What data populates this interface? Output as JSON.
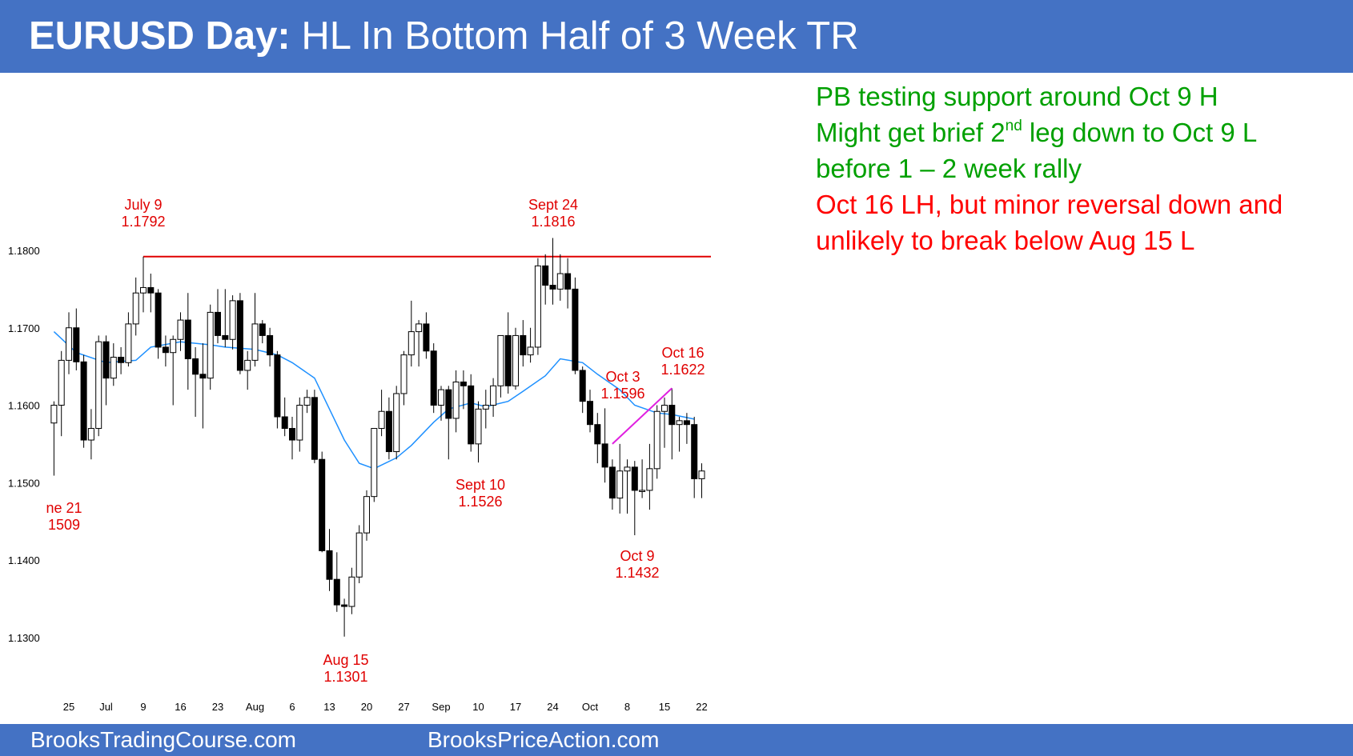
{
  "header": {
    "title_bold": "EURUSD Day:",
    "title_rest": " HL In Bottom Half of 3 Week TR"
  },
  "notes": {
    "line1": "PB testing support around Oct 9 H",
    "line2_pre": "Might get brief 2",
    "line2_sup": "nd",
    "line2_post": " leg down to Oct 9 L",
    "line3": "before 1 – 2 week rally",
    "line4": "Oct 16 LH, but minor reversal down and",
    "line5": "unlikely to break below Aug 15 L"
  },
  "footer": {
    "left": "BrooksTradingCourse.com",
    "right": "BrooksPriceAction.com"
  },
  "colors": {
    "banner": "#4472c4",
    "annotation_red": "#e00000",
    "resistance_line": "#e00000",
    "moving_average": "#1e90ff",
    "trendline": "#e020e0",
    "note_green": "#00a000",
    "note_red": "#ff0000"
  },
  "chart_data": {
    "type": "candlestick",
    "title": "",
    "y_ticks": [
      "1.1300",
      "1.1400",
      "1.1500",
      "1.1600",
      "1.1700",
      "1.1800"
    ],
    "ylim": [
      1.125,
      1.185
    ],
    "x_ticks": [
      {
        "label": "25",
        "date": "2018-06-25"
      },
      {
        "label": "Jul",
        "date": "2018-07-02"
      },
      {
        "label": "9",
        "date": "2018-07-09"
      },
      {
        "label": "16",
        "date": "2018-07-16"
      },
      {
        "label": "23",
        "date": "2018-07-23"
      },
      {
        "label": "Aug",
        "date": "2018-07-30"
      },
      {
        "label": "6",
        "date": "2018-08-06"
      },
      {
        "label": "13",
        "date": "2018-08-13"
      },
      {
        "label": "20",
        "date": "2018-08-20"
      },
      {
        "label": "27",
        "date": "2018-08-27"
      },
      {
        "label": "Sep",
        "date": "2018-09-03"
      },
      {
        "label": "10",
        "date": "2018-09-10"
      },
      {
        "label": "17",
        "date": "2018-09-17"
      },
      {
        "label": "24",
        "date": "2018-09-24"
      },
      {
        "label": "Oct",
        "date": "2018-10-01"
      },
      {
        "label": "8",
        "date": "2018-10-08"
      },
      {
        "label": "15",
        "date": "2018-10-15"
      },
      {
        "label": "22",
        "date": "2018-10-22"
      }
    ],
    "annotations": [
      {
        "lines": [
          "ne 21",
          "1509"
        ],
        "date": "2018-06-21",
        "price": 1.1509
      },
      {
        "lines": [
          "July 9",
          "1.1792"
        ],
        "date": "2018-07-09",
        "price": 1.1792
      },
      {
        "lines": [
          "Aug 15",
          "1.1301"
        ],
        "date": "2018-08-15",
        "price": 1.1301
      },
      {
        "lines": [
          "Sept 10",
          "1.1526"
        ],
        "date": "2018-09-10",
        "price": 1.1526
      },
      {
        "lines": [
          "Sept 24",
          "1.1816"
        ],
        "date": "2018-09-24",
        "price": 1.1816
      },
      {
        "lines": [
          "Oct 3",
          "1.1596"
        ],
        "date": "2018-10-03",
        "price": 1.1596
      },
      {
        "lines": [
          "Oct 9",
          "1.1432"
        ],
        "date": "2018-10-09",
        "price": 1.1432
      },
      {
        "lines": [
          "Oct 16",
          "1.1622"
        ],
        "date": "2018-10-16",
        "price": 1.1622
      }
    ],
    "resistance_line": {
      "price": 1.1792,
      "from": "2018-07-09"
    },
    "trendline": {
      "from": {
        "date": "2018-10-04",
        "price": 1.155
      },
      "to": {
        "date": "2018-10-16",
        "price": 1.1622
      }
    },
    "moving_average": {
      "name": "",
      "points": [
        [
          "2018-06-21",
          1.1695
        ],
        [
          "2018-06-26",
          1.1668
        ],
        [
          "2018-07-02",
          1.1655
        ],
        [
          "2018-07-06",
          1.1658
        ],
        [
          "2018-07-10",
          1.1675
        ],
        [
          "2018-07-16",
          1.1682
        ],
        [
          "2018-07-20",
          1.1678
        ],
        [
          "2018-07-24",
          1.1675
        ],
        [
          "2018-07-30",
          1.1672
        ],
        [
          "2018-08-02",
          1.1665
        ],
        [
          "2018-08-06",
          1.1655
        ],
        [
          "2018-08-09",
          1.1635
        ],
        [
          "2018-08-13",
          1.1595
        ],
        [
          "2018-08-15",
          1.1555
        ],
        [
          "2018-08-17",
          1.1525
        ],
        [
          "2018-08-21",
          1.1518
        ],
        [
          "2018-08-24",
          1.1532
        ],
        [
          "2018-08-28",
          1.1548
        ],
        [
          "2018-08-31",
          1.1578
        ],
        [
          "2018-09-04",
          1.1595
        ],
        [
          "2018-09-07",
          1.1603
        ],
        [
          "2018-09-11",
          1.1598
        ],
        [
          "2018-09-14",
          1.1605
        ],
        [
          "2018-09-18",
          1.1618
        ],
        [
          "2018-09-21",
          1.1638
        ],
        [
          "2018-09-25",
          1.166
        ],
        [
          "2018-09-28",
          1.1655
        ],
        [
          "2018-10-02",
          1.164
        ],
        [
          "2018-10-05",
          1.162
        ],
        [
          "2018-10-09",
          1.16
        ],
        [
          "2018-10-12",
          1.159
        ],
        [
          "2018-10-16",
          1.1588
        ],
        [
          "2018-10-19",
          1.1582
        ]
      ]
    },
    "candles": [
      {
        "date": "2018-06-21",
        "open": 1.1577,
        "high": 1.1605,
        "low": 1.1509,
        "close": 1.16
      },
      {
        "date": "2018-06-22",
        "open": 1.16,
        "high": 1.167,
        "low": 1.156,
        "close": 1.1658
      },
      {
        "date": "2018-06-25",
        "open": 1.1658,
        "high": 1.172,
        "low": 1.164,
        "close": 1.17
      },
      {
        "date": "2018-06-26",
        "open": 1.17,
        "high": 1.1725,
        "low": 1.1645,
        "close": 1.1656
      },
      {
        "date": "2018-06-27",
        "open": 1.1656,
        "high": 1.1665,
        "low": 1.1545,
        "close": 1.1555
      },
      {
        "date": "2018-06-28",
        "open": 1.1555,
        "high": 1.1595,
        "low": 1.153,
        "close": 1.157
      },
      {
        "date": "2018-06-29",
        "open": 1.157,
        "high": 1.169,
        "low": 1.156,
        "close": 1.1682
      },
      {
        "date": "2018-07-02",
        "open": 1.1682,
        "high": 1.169,
        "low": 1.16,
        "close": 1.1635
      },
      {
        "date": "2018-07-03",
        "open": 1.1635,
        "high": 1.168,
        "low": 1.1625,
        "close": 1.1662
      },
      {
        "date": "2018-07-04",
        "open": 1.1662,
        "high": 1.1675,
        "low": 1.164,
        "close": 1.1655
      },
      {
        "date": "2018-07-05",
        "open": 1.1655,
        "high": 1.172,
        "low": 1.165,
        "close": 1.1705
      },
      {
        "date": "2018-07-06",
        "open": 1.1705,
        "high": 1.1765,
        "low": 1.169,
        "close": 1.1745
      },
      {
        "date": "2018-07-09",
        "open": 1.1745,
        "high": 1.1792,
        "low": 1.172,
        "close": 1.1752
      },
      {
        "date": "2018-07-10",
        "open": 1.1752,
        "high": 1.177,
        "low": 1.172,
        "close": 1.1745
      },
      {
        "date": "2018-07-11",
        "open": 1.1745,
        "high": 1.175,
        "low": 1.166,
        "close": 1.1675
      },
      {
        "date": "2018-07-12",
        "open": 1.1675,
        "high": 1.169,
        "low": 1.165,
        "close": 1.1668
      },
      {
        "date": "2018-07-13",
        "open": 1.1668,
        "high": 1.169,
        "low": 1.16,
        "close": 1.1685
      },
      {
        "date": "2018-07-16",
        "open": 1.1685,
        "high": 1.172,
        "low": 1.167,
        "close": 1.171
      },
      {
        "date": "2018-07-17",
        "open": 1.171,
        "high": 1.1745,
        "low": 1.162,
        "close": 1.166
      },
      {
        "date": "2018-07-18",
        "open": 1.166,
        "high": 1.1675,
        "low": 1.1585,
        "close": 1.164
      },
      {
        "date": "2018-07-19",
        "open": 1.164,
        "high": 1.168,
        "low": 1.157,
        "close": 1.1635
      },
      {
        "date": "2018-07-20",
        "open": 1.1635,
        "high": 1.173,
        "low": 1.162,
        "close": 1.172
      },
      {
        "date": "2018-07-23",
        "open": 1.172,
        "high": 1.175,
        "low": 1.168,
        "close": 1.169
      },
      {
        "date": "2018-07-24",
        "open": 1.169,
        "high": 1.175,
        "low": 1.1675,
        "close": 1.1685
      },
      {
        "date": "2018-07-25",
        "open": 1.1685,
        "high": 1.1742,
        "low": 1.1672,
        "close": 1.1735
      },
      {
        "date": "2018-07-26",
        "open": 1.1735,
        "high": 1.1745,
        "low": 1.164,
        "close": 1.1645
      },
      {
        "date": "2018-07-27",
        "open": 1.1645,
        "high": 1.167,
        "low": 1.162,
        "close": 1.1658
      },
      {
        "date": "2018-07-30",
        "open": 1.1658,
        "high": 1.1745,
        "low": 1.165,
        "close": 1.1705
      },
      {
        "date": "2018-07-31",
        "open": 1.1705,
        "high": 1.171,
        "low": 1.168,
        "close": 1.169
      },
      {
        "date": "2018-08-01",
        "open": 1.169,
        "high": 1.17,
        "low": 1.165,
        "close": 1.1665
      },
      {
        "date": "2018-08-02",
        "open": 1.1665,
        "high": 1.167,
        "low": 1.157,
        "close": 1.1585
      },
      {
        "date": "2018-08-03",
        "open": 1.1585,
        "high": 1.161,
        "low": 1.156,
        "close": 1.157
      },
      {
        "date": "2018-08-06",
        "open": 1.157,
        "high": 1.1585,
        "low": 1.153,
        "close": 1.1555
      },
      {
        "date": "2018-08-07",
        "open": 1.1555,
        "high": 1.161,
        "low": 1.154,
        "close": 1.16
      },
      {
        "date": "2018-08-08",
        "open": 1.16,
        "high": 1.162,
        "low": 1.159,
        "close": 1.161
      },
      {
        "date": "2018-08-09",
        "open": 1.161,
        "high": 1.162,
        "low": 1.1525,
        "close": 1.153
      },
      {
        "date": "2018-08-10",
        "open": 1.153,
        "high": 1.154,
        "low": 1.141,
        "close": 1.1412
      },
      {
        "date": "2018-08-13",
        "open": 1.1412,
        "high": 1.144,
        "low": 1.136,
        "close": 1.1375
      },
      {
        "date": "2018-08-14",
        "open": 1.1375,
        "high": 1.141,
        "low": 1.1333,
        "close": 1.1342
      },
      {
        "date": "2018-08-15",
        "open": 1.1342,
        "high": 1.135,
        "low": 1.1301,
        "close": 1.134
      },
      {
        "date": "2018-08-16",
        "open": 1.134,
        "high": 1.139,
        "low": 1.133,
        "close": 1.1378
      },
      {
        "date": "2018-08-17",
        "open": 1.1378,
        "high": 1.1445,
        "low": 1.137,
        "close": 1.1435
      },
      {
        "date": "2018-08-20",
        "open": 1.1435,
        "high": 1.149,
        "low": 1.1425,
        "close": 1.1482
      },
      {
        "date": "2018-08-21",
        "open": 1.1482,
        "high": 1.157,
        "low": 1.1475,
        "close": 1.157
      },
      {
        "date": "2018-08-22",
        "open": 1.157,
        "high": 1.162,
        "low": 1.156,
        "close": 1.1592
      },
      {
        "date": "2018-08-23",
        "open": 1.1592,
        "high": 1.161,
        "low": 1.153,
        "close": 1.154
      },
      {
        "date": "2018-08-24",
        "open": 1.154,
        "high": 1.1625,
        "low": 1.153,
        "close": 1.1615
      },
      {
        "date": "2018-08-27",
        "open": 1.1615,
        "high": 1.167,
        "low": 1.16,
        "close": 1.1665
      },
      {
        "date": "2018-08-28",
        "open": 1.1665,
        "high": 1.1735,
        "low": 1.165,
        "close": 1.1695
      },
      {
        "date": "2018-08-29",
        "open": 1.1695,
        "high": 1.171,
        "low": 1.165,
        "close": 1.1705
      },
      {
        "date": "2018-08-30",
        "open": 1.1705,
        "high": 1.172,
        "low": 1.166,
        "close": 1.167
      },
      {
        "date": "2018-08-31",
        "open": 1.167,
        "high": 1.168,
        "low": 1.159,
        "close": 1.16
      },
      {
        "date": "2018-09-03",
        "open": 1.16,
        "high": 1.1625,
        "low": 1.158,
        "close": 1.162
      },
      {
        "date": "2018-09-04",
        "open": 1.162,
        "high": 1.1625,
        "low": 1.153,
        "close": 1.1583
      },
      {
        "date": "2018-09-05",
        "open": 1.1583,
        "high": 1.1645,
        "low": 1.1565,
        "close": 1.163
      },
      {
        "date": "2018-09-06",
        "open": 1.163,
        "high": 1.1645,
        "low": 1.1595,
        "close": 1.1625
      },
      {
        "date": "2018-09-07",
        "open": 1.1625,
        "high": 1.164,
        "low": 1.154,
        "close": 1.155
      },
      {
        "date": "2018-09-10",
        "open": 1.155,
        "high": 1.1605,
        "low": 1.1526,
        "close": 1.1595
      },
      {
        "date": "2018-09-11",
        "open": 1.1595,
        "high": 1.162,
        "low": 1.157,
        "close": 1.16
      },
      {
        "date": "2018-09-12",
        "open": 1.16,
        "high": 1.1635,
        "low": 1.1585,
        "close": 1.1625
      },
      {
        "date": "2018-09-13",
        "open": 1.1625,
        "high": 1.169,
        "low": 1.161,
        "close": 1.169
      },
      {
        "date": "2018-09-14",
        "open": 1.169,
        "high": 1.172,
        "low": 1.1615,
        "close": 1.1625
      },
      {
        "date": "2018-09-17",
        "open": 1.1625,
        "high": 1.17,
        "low": 1.162,
        "close": 1.169
      },
      {
        "date": "2018-09-18",
        "open": 1.169,
        "high": 1.171,
        "low": 1.165,
        "close": 1.1665
      },
      {
        "date": "2018-09-19",
        "open": 1.1665,
        "high": 1.17,
        "low": 1.1655,
        "close": 1.1675
      },
      {
        "date": "2018-09-20",
        "open": 1.1675,
        "high": 1.179,
        "low": 1.1665,
        "close": 1.178
      },
      {
        "date": "2018-09-21",
        "open": 1.178,
        "high": 1.1795,
        "low": 1.173,
        "close": 1.1755
      },
      {
        "date": "2018-09-24",
        "open": 1.1755,
        "high": 1.1816,
        "low": 1.173,
        "close": 1.175
      },
      {
        "date": "2018-09-25",
        "open": 1.175,
        "high": 1.1795,
        "low": 1.1735,
        "close": 1.177
      },
      {
        "date": "2018-09-26",
        "open": 1.177,
        "high": 1.179,
        "low": 1.1725,
        "close": 1.175
      },
      {
        "date": "2018-09-27",
        "open": 1.175,
        "high": 1.1765,
        "low": 1.164,
        "close": 1.1645
      },
      {
        "date": "2018-09-28",
        "open": 1.1645,
        "high": 1.165,
        "low": 1.159,
        "close": 1.1605
      },
      {
        "date": "2018-10-01",
        "open": 1.1605,
        "high": 1.162,
        "low": 1.1565,
        "close": 1.1575
      },
      {
        "date": "2018-10-02",
        "open": 1.1575,
        "high": 1.159,
        "low": 1.1525,
        "close": 1.155
      },
      {
        "date": "2018-10-03",
        "open": 1.155,
        "high": 1.1596,
        "low": 1.15,
        "close": 1.152
      },
      {
        "date": "2018-10-04",
        "open": 1.152,
        "high": 1.153,
        "low": 1.1465,
        "close": 1.148
      },
      {
        "date": "2018-10-05",
        "open": 1.148,
        "high": 1.155,
        "low": 1.146,
        "close": 1.1515
      },
      {
        "date": "2018-10-08",
        "open": 1.1515,
        "high": 1.153,
        "low": 1.146,
        "close": 1.152
      },
      {
        "date": "2018-10-09",
        "open": 1.152,
        "high": 1.1528,
        "low": 1.1432,
        "close": 1.149
      },
      {
        "date": "2018-10-10",
        "open": 1.149,
        "high": 1.153,
        "low": 1.148,
        "close": 1.149
      },
      {
        "date": "2018-10-11",
        "open": 1.149,
        "high": 1.155,
        "low": 1.1465,
        "close": 1.1518
      },
      {
        "date": "2018-10-12",
        "open": 1.1518,
        "high": 1.16,
        "low": 1.1505,
        "close": 1.1592
      },
      {
        "date": "2018-10-15",
        "open": 1.1592,
        "high": 1.161,
        "low": 1.1545,
        "close": 1.16
      },
      {
        "date": "2018-10-16",
        "open": 1.16,
        "high": 1.1622,
        "low": 1.153,
        "close": 1.1575
      },
      {
        "date": "2018-10-17",
        "open": 1.1575,
        "high": 1.1585,
        "low": 1.154,
        "close": 1.158
      },
      {
        "date": "2018-10-18",
        "open": 1.158,
        "high": 1.159,
        "low": 1.155,
        "close": 1.1575
      },
      {
        "date": "2018-10-19",
        "open": 1.1575,
        "high": 1.1585,
        "low": 1.148,
        "close": 1.1505
      },
      {
        "date": "2018-10-22",
        "open": 1.1505,
        "high": 1.1525,
        "low": 1.148,
        "close": 1.1515
      }
    ]
  }
}
